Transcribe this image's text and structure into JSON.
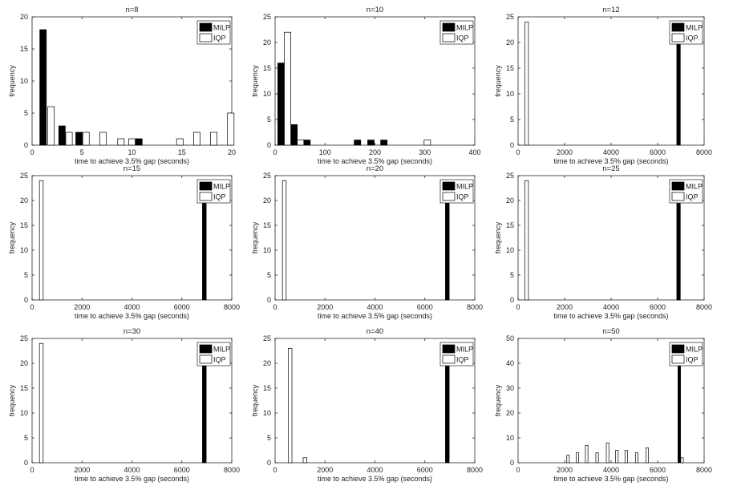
{
  "figure": {
    "description_title": ""
  },
  "chart_data": [
    {
      "type": "bar",
      "title": "n=8",
      "xlabel": "time to achieve 3.5% gap (seconds)",
      "ylabel": "frequency",
      "xlim": [
        0,
        20
      ],
      "ylim": [
        0,
        20
      ],
      "xticks": [
        0,
        5,
        10,
        15,
        20
      ],
      "yticks": [
        0,
        5,
        10,
        15,
        20
      ],
      "bar_width": 0.65,
      "legend": {
        "position": "top-right",
        "entries": [
          "MILP",
          "IQP"
        ]
      },
      "series": [
        {
          "name": "MILP",
          "color": "#000000",
          "x": [
            1.1,
            3.0,
            4.7,
            6.8,
            10.7,
            11.3
          ],
          "values": [
            18,
            3,
            2,
            0,
            1,
            0
          ]
        },
        {
          "name": "IQP",
          "color": "#ffffff",
          "x": [
            1.9,
            3.7,
            5.4,
            7.1,
            8.9,
            10.0,
            14.8,
            16.5,
            18.2,
            19.9
          ],
          "values": [
            6,
            2,
            2,
            2,
            1,
            1,
            1,
            2,
            2,
            5
          ]
        }
      ]
    },
    {
      "type": "bar",
      "title": "n=10",
      "xlabel": "time to achieve 3.5% gap (seconds)",
      "ylabel": "frequency",
      "xlim": [
        0,
        400
      ],
      "ylim": [
        0,
        25
      ],
      "xticks": [
        0,
        100,
        200,
        300,
        400
      ],
      "yticks": [
        0,
        5,
        10,
        15,
        20,
        25
      ],
      "bar_width": 13,
      "legend": {
        "position": "top-right",
        "entries": [
          "MILP",
          "IQP"
        ]
      },
      "series": [
        {
          "name": "MILP",
          "color": "#000000",
          "x": [
            12,
            38,
            64,
            165,
            192,
            218
          ],
          "values": [
            16,
            4,
            1,
            1,
            1,
            1
          ]
        },
        {
          "name": "IQP",
          "color": "#ffffff",
          "x": [
            25,
            51,
            305
          ],
          "values": [
            22,
            1,
            1
          ]
        }
      ]
    },
    {
      "type": "bar",
      "title": "n=12",
      "xlabel": "time to achieve 3.5% gap (seconds)",
      "ylabel": "frequency",
      "xlim": [
        0,
        8000
      ],
      "ylim": [
        0,
        25
      ],
      "xticks": [
        0,
        2000,
        4000,
        6000,
        8000
      ],
      "yticks": [
        0,
        5,
        10,
        15,
        20,
        25
      ],
      "bar_width": 150,
      "legend": {
        "position": "top-right",
        "entries": [
          "MILP",
          "IQP"
        ]
      },
      "series": [
        {
          "name": "MILP",
          "color": "#000000",
          "x": [
            6900
          ],
          "values": [
            24
          ]
        },
        {
          "name": "IQP",
          "color": "#ffffff",
          "x": [
            370
          ],
          "values": [
            24
          ]
        }
      ]
    },
    {
      "type": "bar",
      "title": "n=15",
      "xlabel": "time to achieve 3.5% gap (seconds)",
      "ylabel": "frequency",
      "xlim": [
        0,
        8000
      ],
      "ylim": [
        0,
        25
      ],
      "xticks": [
        0,
        2000,
        4000,
        6000,
        8000
      ],
      "yticks": [
        0,
        5,
        10,
        15,
        20,
        25
      ],
      "bar_width": 150,
      "legend": {
        "position": "top-right",
        "entries": [
          "MILP",
          "IQP"
        ]
      },
      "series": [
        {
          "name": "MILP",
          "color": "#000000",
          "x": [
            6900
          ],
          "values": [
            24
          ]
        },
        {
          "name": "IQP",
          "color": "#ffffff",
          "x": [
            370
          ],
          "values": [
            24
          ]
        }
      ]
    },
    {
      "type": "bar",
      "title": "n=20",
      "xlabel": "time to achieve 3.5% gap (seconds)",
      "ylabel": "frequency",
      "xlim": [
        0,
        8000
      ],
      "ylim": [
        0,
        25
      ],
      "xticks": [
        0,
        2000,
        4000,
        6000,
        8000
      ],
      "yticks": [
        0,
        5,
        10,
        15,
        20,
        25
      ],
      "bar_width": 150,
      "legend": {
        "position": "top-right",
        "entries": [
          "MILP",
          "IQP"
        ]
      },
      "series": [
        {
          "name": "MILP",
          "color": "#000000",
          "x": [
            6900
          ],
          "values": [
            24
          ]
        },
        {
          "name": "IQP",
          "color": "#ffffff",
          "x": [
            370
          ],
          "values": [
            24
          ]
        }
      ]
    },
    {
      "type": "bar",
      "title": "n=25",
      "xlabel": "time to achieve 3.5% gap (seconds)",
      "ylabel": "frequency",
      "xlim": [
        0,
        8000
      ],
      "ylim": [
        0,
        25
      ],
      "xticks": [
        0,
        2000,
        4000,
        6000,
        8000
      ],
      "yticks": [
        0,
        5,
        10,
        15,
        20,
        25
      ],
      "bar_width": 150,
      "legend": {
        "position": "top-right",
        "entries": [
          "MILP",
          "IQP"
        ]
      },
      "series": [
        {
          "name": "MILP",
          "color": "#000000",
          "x": [
            6900
          ],
          "values": [
            24
          ]
        },
        {
          "name": "IQP",
          "color": "#ffffff",
          "x": [
            370
          ],
          "values": [
            24
          ]
        }
      ]
    },
    {
      "type": "bar",
      "title": "n=30",
      "xlabel": "time to achieve 3.5% gap (seconds)",
      "ylabel": "frequency",
      "xlim": [
        0,
        8000
      ],
      "ylim": [
        0,
        25
      ],
      "xticks": [
        0,
        2000,
        4000,
        6000,
        8000
      ],
      "yticks": [
        0,
        5,
        10,
        15,
        20,
        25
      ],
      "bar_width": 150,
      "legend": {
        "position": "top-right",
        "entries": [
          "MILP",
          "IQP"
        ]
      },
      "series": [
        {
          "name": "MILP",
          "color": "#000000",
          "x": [
            6900
          ],
          "values": [
            24
          ]
        },
        {
          "name": "IQP",
          "color": "#ffffff",
          "x": [
            370
          ],
          "values": [
            24
          ]
        }
      ]
    },
    {
      "type": "bar",
      "title": "n=40",
      "xlabel": "time to achieve 3.5% gap (seconds)",
      "ylabel": "frequency",
      "xlim": [
        0,
        8000
      ],
      "ylim": [
        0,
        25
      ],
      "xticks": [
        0,
        2000,
        4000,
        6000,
        8000
      ],
      "yticks": [
        0,
        5,
        10,
        15,
        20,
        25
      ],
      "bar_width": 150,
      "legend": {
        "position": "top-right",
        "entries": [
          "MILP",
          "IQP"
        ]
      },
      "series": [
        {
          "name": "MILP",
          "color": "#000000",
          "x": [
            6900
          ],
          "values": [
            24
          ]
        },
        {
          "name": "IQP",
          "color": "#ffffff",
          "x": [
            600,
            1200
          ],
          "values": [
            23,
            1
          ]
        }
      ]
    },
    {
      "type": "bar",
      "title": "n=50",
      "xlabel": "time to achieve 3.5% gap (seconds)",
      "ylabel": "frequency",
      "xlim": [
        0,
        8000
      ],
      "ylim": [
        0,
        50
      ],
      "xticks": [
        0,
        2000,
        4000,
        6000,
        8000
      ],
      "yticks": [
        0,
        10,
        20,
        30,
        40,
        50
      ],
      "bar_width": 110,
      "legend": {
        "position": "top-right",
        "entries": [
          "MILP",
          "IQP"
        ]
      },
      "series": [
        {
          "name": "MILP",
          "color": "#000000",
          "x": [
            6930
          ],
          "values": [
            48
          ]
        },
        {
          "name": "IQP",
          "color": "#ffffff",
          "x": [
            2150,
            2550,
            2950,
            3400,
            3850,
            4250,
            4650,
            5100,
            5550,
            7050
          ],
          "values": [
            3,
            4,
            7,
            4,
            8,
            5,
            5,
            4,
            6,
            2
          ]
        }
      ]
    }
  ]
}
